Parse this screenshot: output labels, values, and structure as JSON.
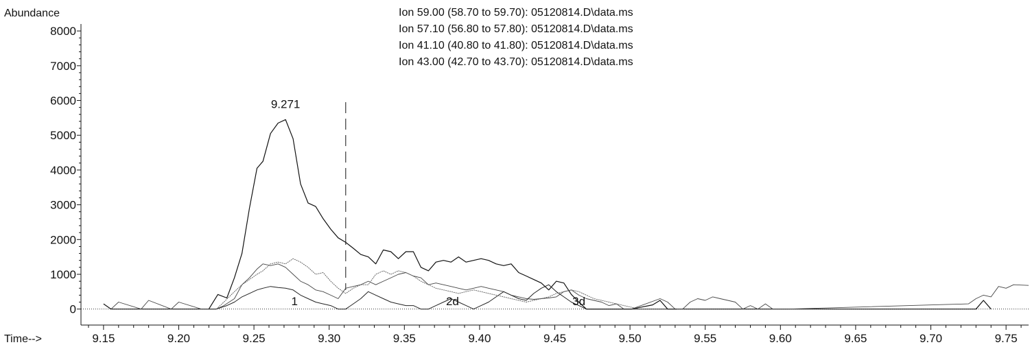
{
  "chart_data": {
    "type": "line",
    "ylabel": "Abundance",
    "xlabel": "Time-->",
    "xlim": [
      9.135,
      9.765
    ],
    "ylim": [
      -460,
      8200
    ],
    "xticks": [
      9.15,
      9.2,
      9.25,
      9.3,
      9.35,
      9.4,
      9.45,
      9.5,
      9.55,
      9.6,
      9.65,
      9.7,
      9.75
    ],
    "xtick_labels": [
      "9.15",
      "9.20",
      "9.25",
      "9.30",
      "9.35",
      "9.40",
      "9.45",
      "9.50",
      "9.55",
      "9.60",
      "9.65",
      "9.70",
      "9.75"
    ],
    "yticks": [
      0,
      1000,
      2000,
      3000,
      4000,
      5000,
      6000,
      7000,
      8000
    ],
    "ytick_labels": [
      "0",
      "1000",
      "2000",
      "3000",
      "4000",
      "5000",
      "6000",
      "7000",
      "8000"
    ],
    "grid": false,
    "legend": [
      "Ion  59.00 (58.70 to 59.70): 05120814.D\\data.ms",
      "Ion  57.10 (56.80 to 57.80): 05120814.D\\data.ms",
      "Ion  41.10 (40.80 to 41.80): 05120814.D\\data.ms",
      "Ion  43.00 (42.70 to 43.70): 05120814.D\\data.ms"
    ],
    "legend_position": "top-center",
    "baseline_value": 0,
    "marker_line_x": 9.311,
    "annotations": [
      {
        "text": "9.271",
        "x": 9.271,
        "y": 5780
      },
      {
        "text": "1",
        "x": 9.277,
        "y": 110
      },
      {
        "text": "2d",
        "x": 9.382,
        "y": 110
      },
      {
        "text": "3d",
        "x": 9.466,
        "y": 110
      }
    ],
    "series": [
      {
        "x": [
          9.15,
          9.155,
          9.17,
          9.18,
          9.19,
          9.205,
          9.22,
          9.226,
          9.232,
          9.237,
          9.242,
          9.247,
          9.252,
          9.256,
          9.261,
          9.266,
          9.271,
          9.276,
          9.281,
          9.286,
          9.291,
          9.296,
          9.301,
          9.306,
          9.311,
          9.316,
          9.321,
          9.326,
          9.331,
          9.336,
          9.341,
          9.346,
          9.351,
          9.356,
          9.361,
          9.366,
          9.371,
          9.376,
          9.381,
          9.386,
          9.391,
          9.396,
          9.401,
          9.406,
          9.411,
          9.416,
          9.421,
          9.426,
          9.431,
          9.436,
          9.441,
          9.446,
          9.451,
          9.456,
          9.461,
          9.466,
          9.471,
          9.476,
          9.481,
          9.486,
          9.491,
          9.496,
          9.501,
          9.515,
          9.52,
          9.525,
          9.53,
          9.54,
          9.55,
          9.56,
          9.57,
          9.58,
          9.59,
          9.6,
          9.73,
          9.735,
          9.74
        ],
        "values": [
          150,
          0,
          0,
          0,
          0,
          0,
          0,
          420,
          320,
          900,
          1600,
          2900,
          4050,
          4250,
          5050,
          5350,
          5450,
          4900,
          3600,
          3050,
          2950,
          2600,
          2300,
          2050,
          1920,
          1750,
          1570,
          1500,
          1300,
          1700,
          1650,
          1450,
          1650,
          1650,
          1200,
          1100,
          1350,
          1400,
          1350,
          1500,
          1350,
          1400,
          1450,
          1400,
          1300,
          1250,
          1300,
          1050,
          950,
          850,
          750,
          550,
          800,
          750,
          420,
          200,
          0,
          0,
          0,
          0,
          0,
          0,
          0,
          120,
          250,
          0,
          0,
          0,
          0,
          0,
          0,
          0,
          0,
          0,
          0,
          250,
          0
        ],
        "color": "#111111"
      },
      {
        "x": [
          9.155,
          9.16,
          9.175,
          9.18,
          9.195,
          9.2,
          9.215,
          9.225,
          9.23,
          9.237,
          9.242,
          9.247,
          9.252,
          9.256,
          9.261,
          9.266,
          9.271,
          9.276,
          9.281,
          9.286,
          9.291,
          9.296,
          9.301,
          9.306,
          9.311,
          9.316,
          9.321,
          9.326,
          9.331,
          9.336,
          9.341,
          9.346,
          9.351,
          9.356,
          9.361,
          9.366,
          9.371,
          9.376,
          9.381,
          9.386,
          9.391,
          9.396,
          9.401,
          9.406,
          9.411,
          9.416,
          9.421,
          9.426,
          9.431,
          9.436,
          9.441,
          9.446,
          9.451,
          9.456,
          9.461,
          9.466,
          9.471,
          9.476,
          9.481,
          9.486,
          9.491,
          9.496,
          9.501,
          9.52,
          9.525,
          9.53,
          9.535,
          9.54,
          9.545,
          9.55,
          9.555,
          9.56,
          9.565,
          9.57,
          9.575,
          9.58,
          9.585,
          9.59,
          9.595,
          9.6,
          9.605,
          9.725,
          9.73,
          9.735,
          9.74,
          9.745,
          9.75,
          9.755,
          9.765
        ],
        "values": [
          0,
          200,
          0,
          250,
          0,
          200,
          0,
          0,
          100,
          300,
          700,
          900,
          1150,
          1300,
          1250,
          1300,
          1200,
          1000,
          800,
          700,
          550,
          500,
          400,
          300,
          600,
          650,
          700,
          800,
          700,
          800,
          900,
          1000,
          1050,
          950,
          900,
          700,
          750,
          700,
          650,
          600,
          550,
          600,
          650,
          600,
          550,
          500,
          400,
          350,
          300,
          280,
          300,
          320,
          350,
          500,
          550,
          400,
          300,
          250,
          200,
          100,
          150,
          0,
          0,
          300,
          200,
          0,
          0,
          200,
          300,
          250,
          350,
          300,
          250,
          200,
          0,
          100,
          0,
          150,
          0,
          0,
          0,
          150,
          300,
          400,
          350,
          650,
          600,
          700,
          680
        ],
        "color": "#444444"
      },
      {
        "x": [
          9.22,
          9.225,
          9.232,
          9.237,
          9.242,
          9.247,
          9.252,
          9.256,
          9.261,
          9.266,
          9.271,
          9.276,
          9.281,
          9.286,
          9.291,
          9.296,
          9.301,
          9.306,
          9.311,
          9.316,
          9.321,
          9.326,
          9.331,
          9.336,
          9.341,
          9.346,
          9.351,
          9.356,
          9.361,
          9.366,
          9.371,
          9.376,
          9.381,
          9.386,
          9.391,
          9.396,
          9.401,
          9.406,
          9.411,
          9.416,
          9.421,
          9.426,
          9.431,
          9.436,
          9.441,
          9.446,
          9.451,
          9.456,
          9.461,
          9.466,
          9.471,
          9.476,
          9.481,
          9.486,
          9.491,
          9.496,
          9.501,
          9.506,
          9.511,
          9.516,
          9.521,
          9.526,
          9.531
        ],
        "values": [
          0,
          0,
          100,
          200,
          350,
          450,
          550,
          600,
          650,
          620,
          600,
          550,
          400,
          300,
          200,
          150,
          100,
          0,
          0,
          150,
          300,
          500,
          400,
          300,
          200,
          150,
          100,
          100,
          0,
          0,
          100,
          200,
          300,
          200,
          100,
          0,
          100,
          200,
          350,
          500,
          400,
          300,
          250,
          450,
          600,
          700,
          500,
          350,
          200,
          100,
          0,
          0,
          0,
          0,
          0,
          0,
          0,
          0,
          0,
          0,
          0,
          0,
          0
        ],
        "color": "#222222"
      },
      {
        "x": [
          9.225,
          9.23,
          9.237,
          9.242,
          9.247,
          9.252,
          9.256,
          9.261,
          9.266,
          9.271,
          9.276,
          9.281,
          9.286,
          9.291,
          9.296,
          9.301,
          9.306,
          9.311,
          9.316,
          9.321,
          9.326,
          9.331,
          9.336,
          9.341,
          9.346,
          9.351,
          9.356,
          9.361,
          9.366,
          9.371,
          9.376,
          9.381,
          9.386,
          9.391,
          9.396,
          9.401,
          9.406,
          9.411,
          9.416,
          9.421,
          9.426,
          9.431,
          9.436,
          9.441,
          9.446,
          9.451,
          9.456,
          9.461,
          9.466,
          9.471,
          9.476,
          9.481,
          9.486,
          9.491,
          9.496,
          9.501,
          9.506
        ],
        "values": [
          0,
          200,
          500,
          700,
          850,
          1000,
          1100,
          1300,
          1350,
          1300,
          1450,
          1350,
          1200,
          1000,
          1050,
          800,
          600,
          450,
          600,
          700,
          700,
          1000,
          1100,
          1000,
          1100,
          1050,
          950,
          800,
          700,
          600,
          550,
          500,
          450,
          500,
          550,
          500,
          450,
          400,
          350,
          300,
          250,
          200,
          250,
          300,
          350,
          450,
          500,
          550,
          500,
          400,
          300,
          250,
          200,
          150,
          100,
          50,
          0
        ],
        "color": "#555555"
      }
    ]
  }
}
